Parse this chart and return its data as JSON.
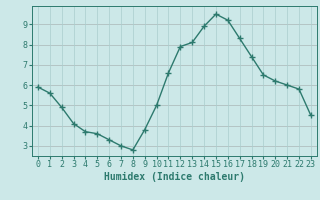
{
  "xlabel": "Humidex (Indice chaleur)",
  "x": [
    0,
    1,
    2,
    3,
    4,
    5,
    6,
    7,
    8,
    9,
    10,
    11,
    12,
    13,
    14,
    15,
    16,
    17,
    18,
    19,
    20,
    21,
    22,
    23
  ],
  "y": [
    5.9,
    5.6,
    4.9,
    4.1,
    3.7,
    3.6,
    3.3,
    3.0,
    2.8,
    3.8,
    5.0,
    6.6,
    7.9,
    8.1,
    8.9,
    9.5,
    9.2,
    8.3,
    7.4,
    6.5,
    6.2,
    6.0,
    5.8,
    4.5
  ],
  "line_color": "#2d7a6e",
  "marker": "+",
  "marker_size": 4,
  "bg_color": "#cce8e8",
  "grid_color": "#aacece",
  "tick_color": "#2d7a6e",
  "label_color": "#2d7a6e",
  "ylim": [
    2.5,
    9.9
  ],
  "xlim": [
    -0.5,
    23.5
  ],
  "yticks": [
    3,
    4,
    5,
    6,
    7,
    8,
    9
  ],
  "xticks": [
    0,
    1,
    2,
    3,
    4,
    5,
    6,
    7,
    8,
    9,
    10,
    11,
    12,
    13,
    14,
    15,
    16,
    17,
    18,
    19,
    20,
    21,
    22,
    23
  ],
  "xlabel_fontsize": 7,
  "tick_fontsize": 6,
  "linewidth": 1.0,
  "markeredgewidth": 1.0
}
